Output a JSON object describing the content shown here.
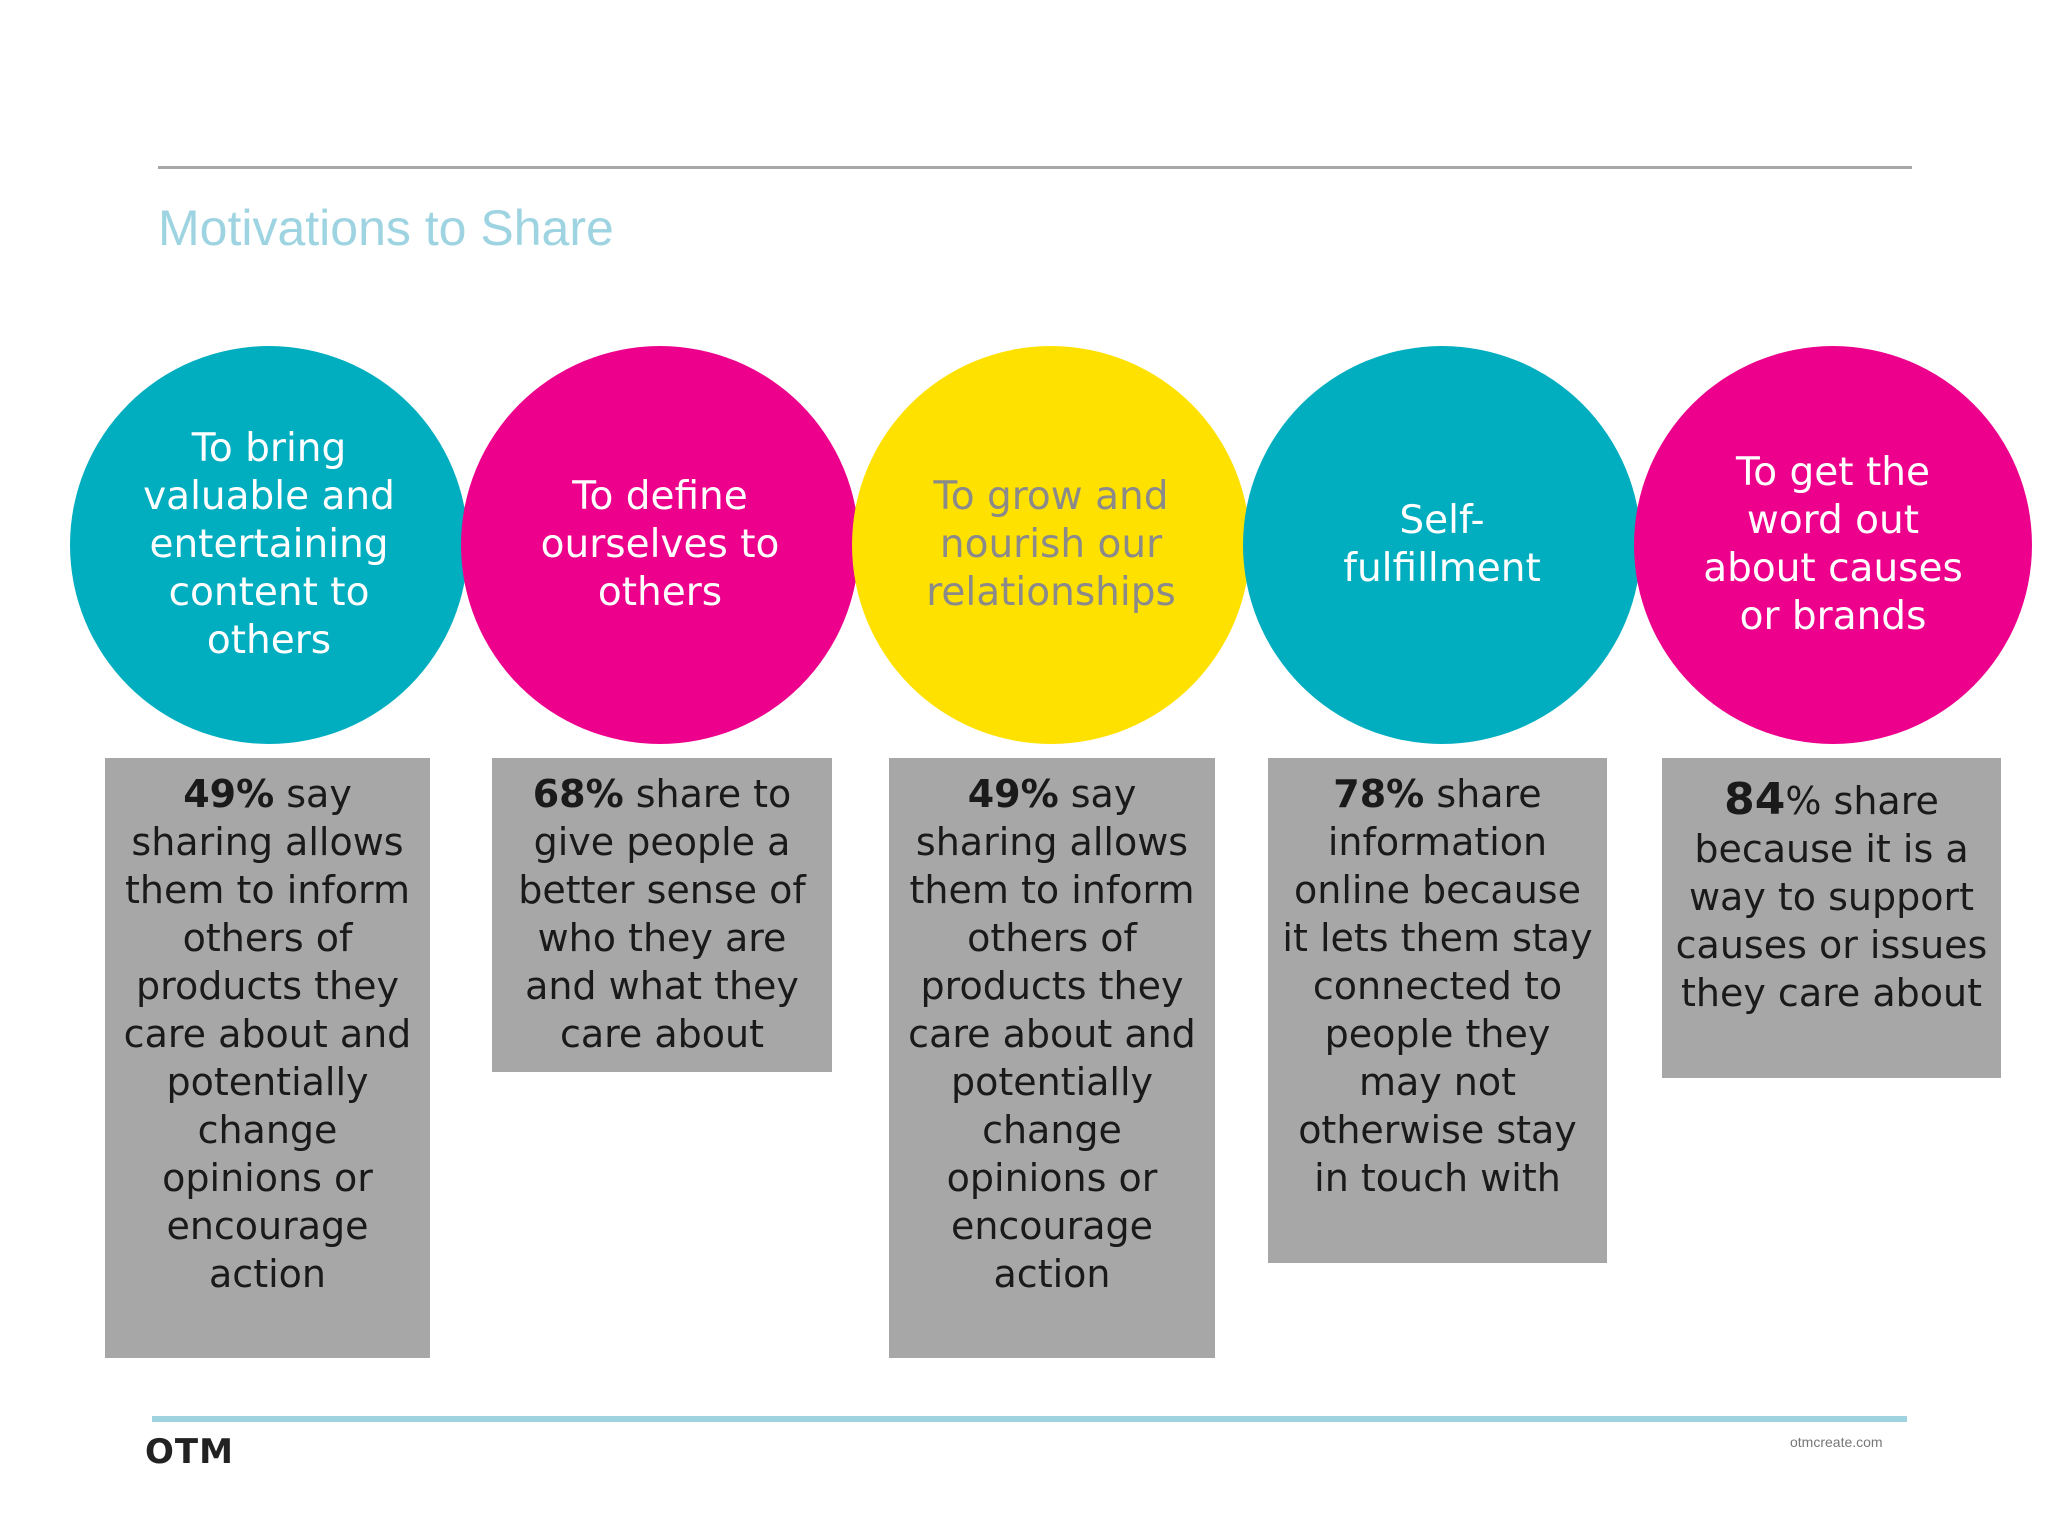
{
  "slide": {
    "title": "Motivations to Share",
    "logo": "OTM",
    "url": "otmcreate.com"
  },
  "colors": {
    "cyan": "#00aec0",
    "magenta": "#ec008c",
    "yellow": "#ffe100",
    "box_gray": "#a8a7a8",
    "title_blue": "#9ed4e1"
  },
  "motivations": [
    {
      "label": "To bring valuable and entertaining content to others",
      "color": "cyan",
      "stat": "49%",
      "text": " say sharing allows them to inform others of products they care about and potentially change opinions or encourage action"
    },
    {
      "label": "To define ourselves to others",
      "color": "magenta",
      "stat": "68%",
      "text": " share to give people a better sense of who they are and what they care about"
    },
    {
      "label": "To grow and nourish our relationships",
      "color": "yellow",
      "stat": "49%",
      "text": " say sharing allows them to inform others of products they care about and potentially change opinions or encourage action"
    },
    {
      "label": "Self-fulfillment",
      "color": "cyan",
      "stat": "78%",
      "text": " share information online because it lets them stay connected to people they may not otherwise stay in touch with"
    },
    {
      "label": "To get the word out about causes or brands",
      "color": "magenta",
      "stat": "84",
      "text": "% share because it is a way to support causes or issues they care about"
    }
  ]
}
